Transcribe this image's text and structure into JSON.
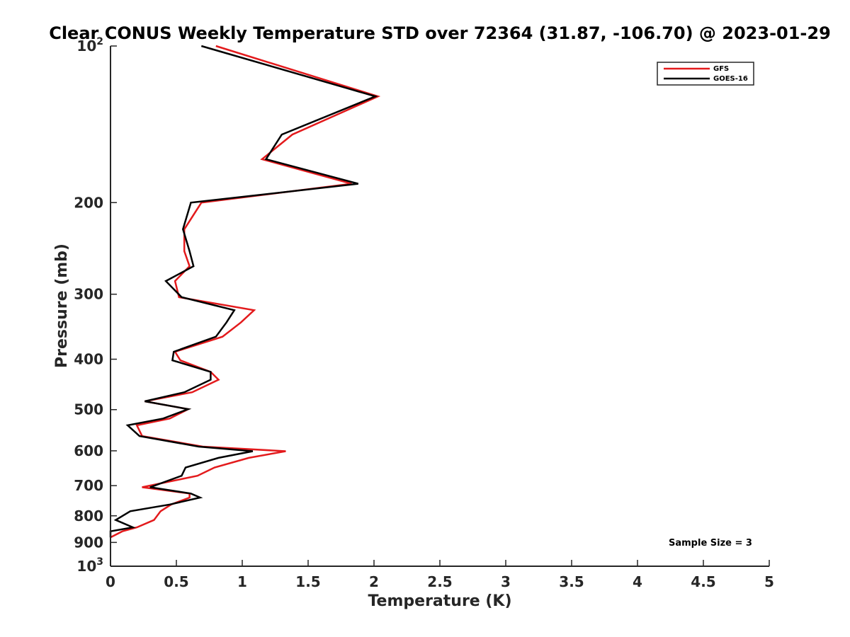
{
  "chart_data": {
    "type": "line",
    "title": "Clear CONUS Weekly Temperature STD over 72364 (31.87, -106.70) @ 2023-01-29",
    "xlabel": "Temperature (K)",
    "ylabel": "Pressure (mb)",
    "xlim": [
      0,
      5
    ],
    "ylim": [
      100,
      1000
    ],
    "y_scale": "log",
    "y_reversed": true,
    "grid": false,
    "legend_position": "top-right",
    "x_ticks": [
      0,
      0.5,
      1,
      1.5,
      2,
      2.5,
      3,
      3.5,
      4,
      4.5,
      5
    ],
    "x_tick_labels": [
      "0",
      "0.5",
      "1",
      "1.5",
      "2",
      "2.5",
      "3",
      "3.5",
      "4",
      "4.5",
      "5"
    ],
    "y_ticks": [
      {
        "value": 100,
        "base": "10",
        "exp": "2"
      },
      {
        "value": 200,
        "label": "200"
      },
      {
        "value": 300,
        "label": "300"
      },
      {
        "value": 400,
        "label": "400"
      },
      {
        "value": 500,
        "label": "500"
      },
      {
        "value": 600,
        "label": "600"
      },
      {
        "value": 700,
        "label": "700"
      },
      {
        "value": 800,
        "label": "800"
      },
      {
        "value": 900,
        "label": "900"
      },
      {
        "value": 1000,
        "base": "10",
        "exp": "3"
      }
    ],
    "annotation": "Sample Size = 3",
    "series": [
      {
        "name": "GFS",
        "color": "#e31a1c",
        "points": [
          [
            0.8,
            100
          ],
          [
            2.03,
            125
          ],
          [
            1.38,
            148
          ],
          [
            1.15,
            165
          ],
          [
            1.83,
            184
          ],
          [
            0.69,
            200
          ],
          [
            0.56,
            225
          ],
          [
            0.56,
            248
          ],
          [
            0.6,
            265
          ],
          [
            0.49,
            283
          ],
          [
            0.52,
            304
          ],
          [
            1.09,
            322
          ],
          [
            0.99,
            340
          ],
          [
            0.85,
            362
          ],
          [
            0.49,
            387
          ],
          [
            0.53,
            402
          ],
          [
            0.76,
            423
          ],
          [
            0.82,
            438
          ],
          [
            0.62,
            463
          ],
          [
            0.26,
            482
          ],
          [
            0.59,
            499
          ],
          [
            0.45,
            520
          ],
          [
            0.2,
            536
          ],
          [
            0.24,
            562
          ],
          [
            0.7,
            589
          ],
          [
            1.33,
            601
          ],
          [
            1.05,
            619
          ],
          [
            0.79,
            646
          ],
          [
            0.66,
            670
          ],
          [
            0.24,
            705
          ],
          [
            0.6,
            725
          ],
          [
            0.6,
            738
          ],
          [
            0.46,
            761
          ],
          [
            0.38,
            784
          ],
          [
            0.33,
            815
          ],
          [
            0.2,
            842
          ],
          [
            0.09,
            857
          ],
          [
            0.0,
            880
          ]
        ]
      },
      {
        "name": "GOES-16",
        "color": "#000000",
        "points": [
          [
            0.69,
            100
          ],
          [
            2.01,
            125
          ],
          [
            1.3,
            148
          ],
          [
            1.18,
            165
          ],
          [
            1.88,
            184
          ],
          [
            0.61,
            200
          ],
          [
            0.55,
            225
          ],
          [
            0.6,
            248
          ],
          [
            0.63,
            265
          ],
          [
            0.42,
            283
          ],
          [
            0.54,
            304
          ],
          [
            0.94,
            322
          ],
          [
            0.88,
            340
          ],
          [
            0.8,
            362
          ],
          [
            0.48,
            387
          ],
          [
            0.47,
            402
          ],
          [
            0.76,
            423
          ],
          [
            0.76,
            438
          ],
          [
            0.56,
            463
          ],
          [
            0.26,
            482
          ],
          [
            0.59,
            499
          ],
          [
            0.4,
            520
          ],
          [
            0.13,
            536
          ],
          [
            0.22,
            562
          ],
          [
            0.67,
            589
          ],
          [
            1.08,
            601
          ],
          [
            0.82,
            619
          ],
          [
            0.57,
            646
          ],
          [
            0.54,
            670
          ],
          [
            0.3,
            705
          ],
          [
            0.61,
            725
          ],
          [
            0.68,
            738
          ],
          [
            0.45,
            761
          ],
          [
            0.15,
            784
          ],
          [
            0.04,
            815
          ],
          [
            0.17,
            842
          ],
          [
            0.0,
            857
          ],
          [
            0.0,
            880
          ]
        ]
      }
    ]
  }
}
